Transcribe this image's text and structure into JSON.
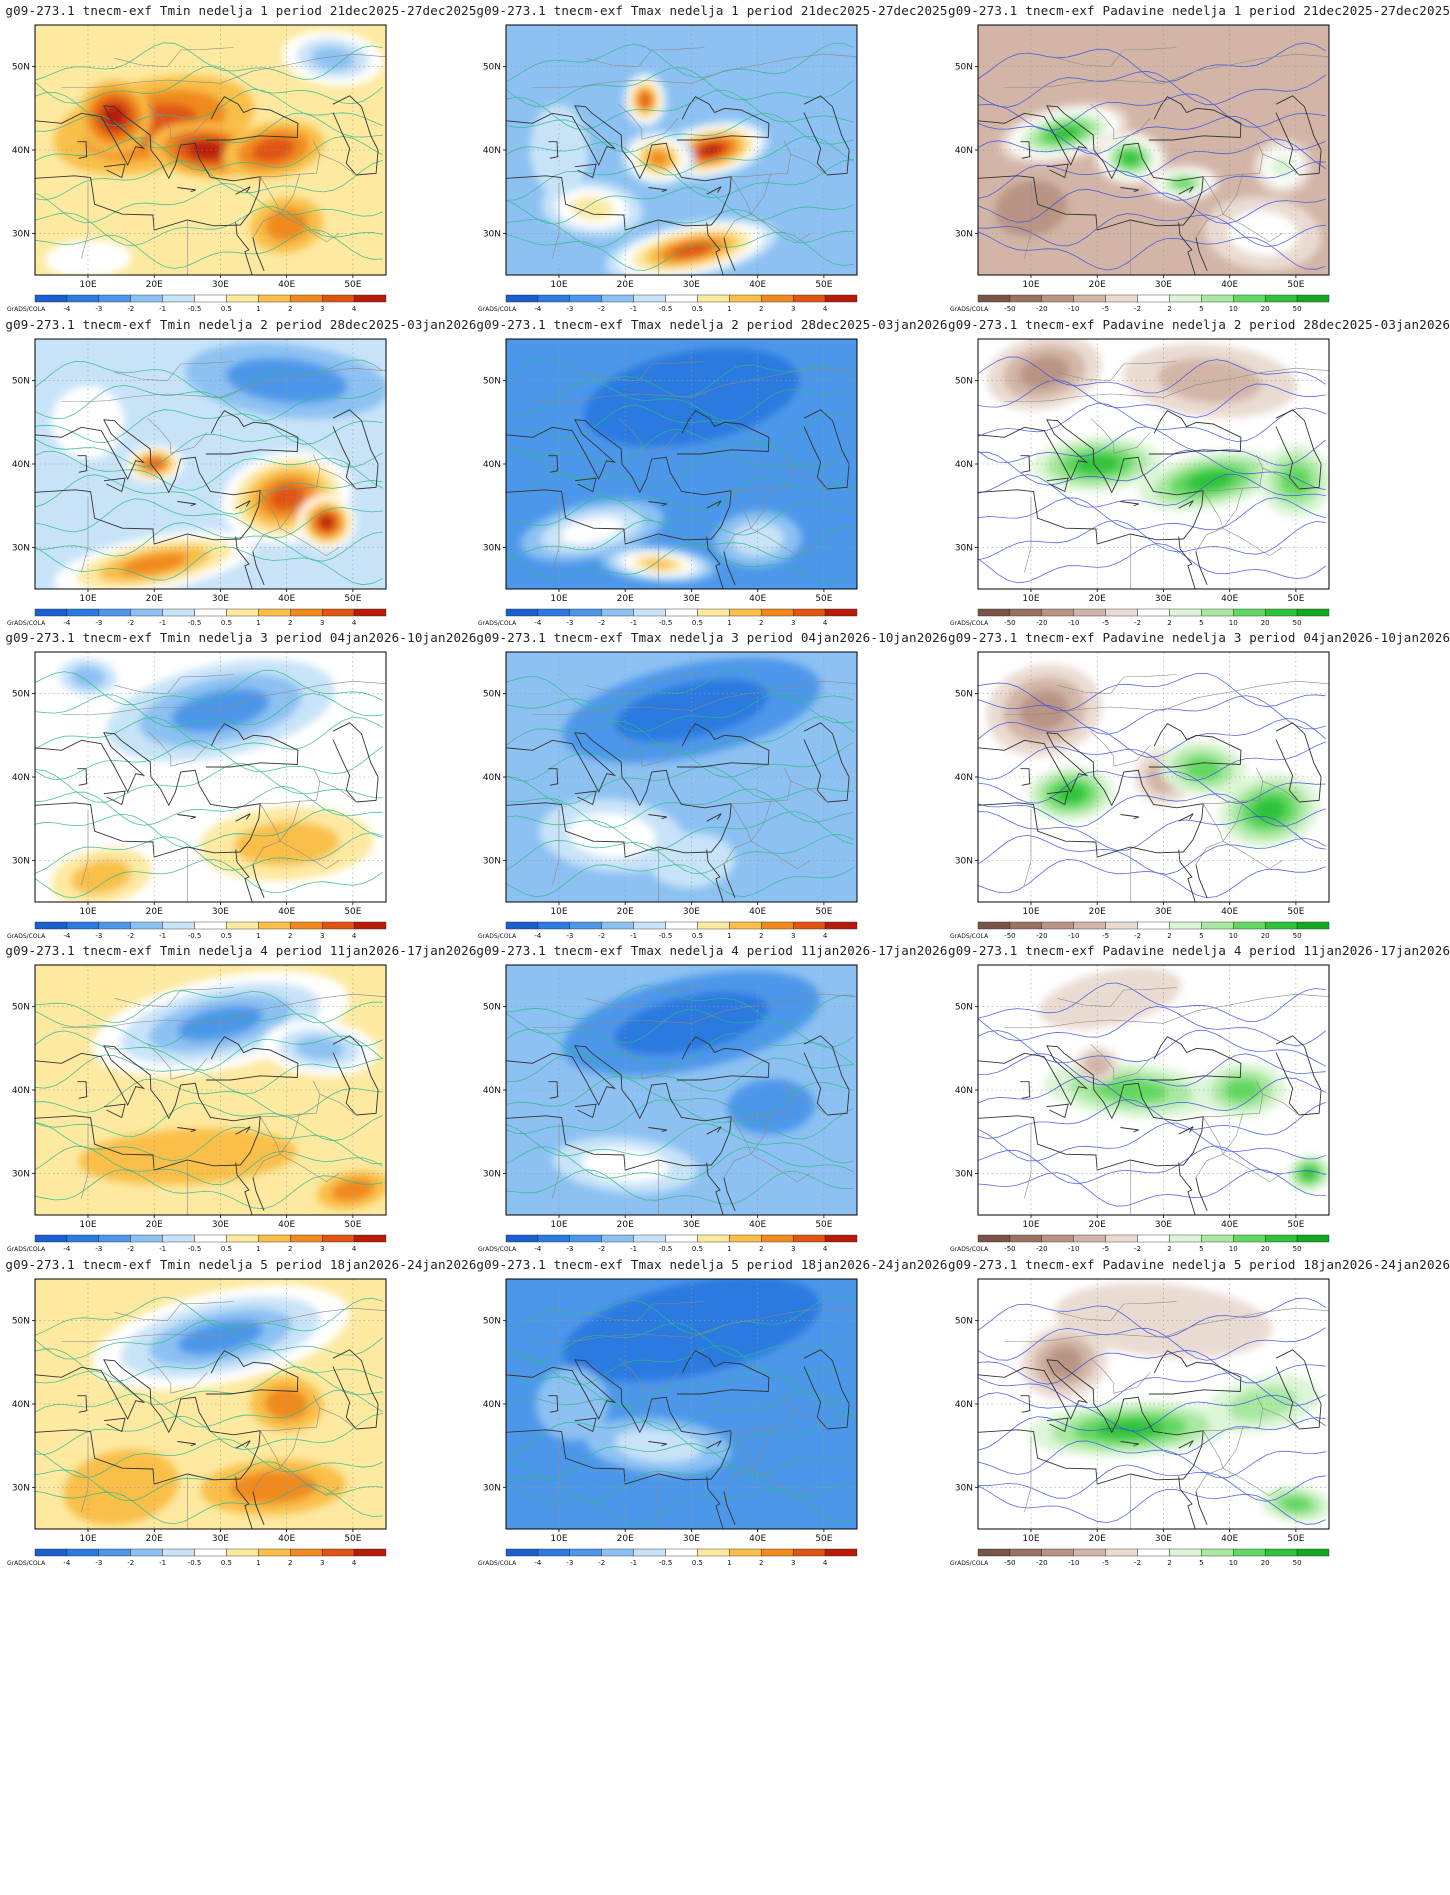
{
  "colorbars": {
    "temperature": {
      "labels": [
        "-4",
        "-3",
        "-2",
        "-1",
        "-0.5",
        "0.5",
        "1",
        "2",
        "3",
        "4"
      ],
      "colors": [
        "#1a5fd0",
        "#2b7ae0",
        "#4d97ea",
        "#8cc1f2",
        "#c8e3f8",
        "#ffffff",
        "#fde9a0",
        "#f9bf4a",
        "#f08a1f",
        "#e05412",
        "#b81b0a"
      ]
    },
    "precipitation": {
      "labels": [
        "-50",
        "-20",
        "-10",
        "-5",
        "-2",
        "2",
        "5",
        "10",
        "20",
        "50"
      ],
      "colors": [
        "#7a5444",
        "#9a7262",
        "#b99484",
        "#d2b5a6",
        "#eadbd2",
        "#ffffff",
        "#dcf5d6",
        "#a8e8a0",
        "#62d862",
        "#2fc23a",
        "#13a820"
      ]
    }
  },
  "grads_tag": "GrADS/COLA",
  "lat_labels": [
    "50N",
    "40N",
    "30N"
  ],
  "lon_labels": [
    "10E",
    "20E",
    "30E",
    "40E",
    "50E"
  ],
  "maps": [
    {
      "title": "g09-273.1 tnecm-exf Tmin nedelja 1 period 21dec2025-27dec2025",
      "variable": "Tmin",
      "week": 1,
      "colorbar": "temperature",
      "background_level": 6,
      "blobs": [
        {
          "lon": 20,
          "lat": 43,
          "rx": 14,
          "ry": 5,
          "level": 9
        },
        {
          "lon": 28,
          "lat": 40,
          "rx": 8,
          "ry": 3,
          "level": 10
        },
        {
          "lon": 14,
          "lat": 44,
          "rx": 5,
          "ry": 4,
          "level": 10
        },
        {
          "lon": 38,
          "lat": 40,
          "rx": 7,
          "ry": 3,
          "level": 9
        },
        {
          "lon": 47,
          "lat": 51,
          "rx": 7,
          "ry": 3,
          "level": 3
        },
        {
          "lon": 10,
          "lat": 27,
          "rx": 6,
          "ry": 2,
          "level": 5
        },
        {
          "lon": 40,
          "lat": 31,
          "rx": 5,
          "ry": 3,
          "level": 8
        }
      ]
    },
    {
      "title": "g09-273.1 tnecm-exf Tmax nedelja 1 period 21dec2025-27dec2025",
      "variable": "Tmax",
      "week": 1,
      "colorbar": "temperature",
      "background_level": 3,
      "blobs": [
        {
          "lon": 33,
          "lat": 40,
          "rx": 8,
          "ry": 3,
          "level": 10
        },
        {
          "lon": 25,
          "lat": 39,
          "rx": 5,
          "ry": 3,
          "level": 8
        },
        {
          "lon": 23,
          "lat": 46,
          "rx": 3,
          "ry": 3,
          "level": 9
        },
        {
          "lon": 30,
          "lat": 28,
          "rx": 12,
          "ry": 3,
          "level": 9
        },
        {
          "lon": 15,
          "lat": 33,
          "rx": 7,
          "ry": 3,
          "level": 6
        },
        {
          "lon": 10,
          "lat": 40,
          "rx": 4,
          "ry": 5,
          "level": 4
        }
      ]
    },
    {
      "title": "g09-273.1 tnecm-exf Padavine nedelja 1 period 21dec2025-27dec2025",
      "variable": "Padavine",
      "week": 1,
      "colorbar": "precipitation",
      "background_level": 3,
      "blobs": [
        {
          "lon": 15,
          "lat": 42,
          "rx": 9,
          "ry": 3,
          "level": 9
        },
        {
          "lon": 25,
          "lat": 39,
          "rx": 5,
          "ry": 3,
          "level": 9
        },
        {
          "lon": 33,
          "lat": 36,
          "rx": 5,
          "ry": 2,
          "level": 8
        },
        {
          "lon": 10,
          "lat": 33,
          "rx": 5,
          "ry": 3,
          "level": 2
        },
        {
          "lon": 45,
          "lat": 30,
          "rx": 8,
          "ry": 4,
          "level": 5
        },
        {
          "lon": 48,
          "lat": 38,
          "rx": 4,
          "ry": 3,
          "level": 6
        }
      ]
    },
    {
      "title": "g09-273.1 tnecm-exf Tmin nedelja 2 period 28dec2025-03jan2026",
      "variable": "Tmin",
      "week": 2,
      "colorbar": "temperature",
      "background_level": 4,
      "blobs": [
        {
          "lon": 40,
          "lat": 36,
          "rx": 9,
          "ry": 5,
          "level": 9
        },
        {
          "lon": 46,
          "lat": 33,
          "rx": 4,
          "ry": 3,
          "level": 10
        },
        {
          "lon": 20,
          "lat": 40,
          "rx": 4,
          "ry": 2,
          "level": 9
        },
        {
          "lon": 20,
          "lat": 28,
          "rx": 14,
          "ry": 3,
          "level": 8
        },
        {
          "lon": 40,
          "lat": 50,
          "rx": 14,
          "ry": 4,
          "level": 2
        },
        {
          "lon": 10,
          "lat": 45,
          "rx": 5,
          "ry": 4,
          "level": 5
        }
      ]
    },
    {
      "title": "g09-273.1 tnecm-exf Tmax nedelja 2 period 28dec2025-03jan2026",
      "variable": "Tmax",
      "week": 2,
      "colorbar": "temperature",
      "background_level": 2,
      "blobs": [
        {
          "lon": 15,
          "lat": 32,
          "rx": 10,
          "ry": 3,
          "level": 5
        },
        {
          "lon": 25,
          "lat": 28,
          "rx": 8,
          "ry": 2,
          "level": 7
        },
        {
          "lon": 40,
          "lat": 31,
          "rx": 6,
          "ry": 3,
          "level": 4
        },
        {
          "lon": 30,
          "lat": 48,
          "rx": 15,
          "ry": 5,
          "level": 1
        }
      ]
    },
    {
      "title": "g09-273.1 tnecm-exf Padavine nedelja 2 period 28dec2025-03jan2026",
      "variable": "Padavine",
      "week": 2,
      "colorbar": "precipitation",
      "background_level": 5,
      "blobs": [
        {
          "lon": 12,
          "lat": 51,
          "rx": 8,
          "ry": 4,
          "level": 2
        },
        {
          "lon": 37,
          "lat": 50,
          "rx": 12,
          "ry": 4,
          "level": 3
        },
        {
          "lon": 20,
          "lat": 40,
          "rx": 9,
          "ry": 3,
          "level": 9
        },
        {
          "lon": 37,
          "lat": 38,
          "rx": 10,
          "ry": 3,
          "level": 9
        },
        {
          "lon": 50,
          "lat": 38,
          "rx": 5,
          "ry": 4,
          "level": 8
        },
        {
          "lon": 25,
          "lat": 30,
          "rx": 10,
          "ry": 3,
          "level": 5
        }
      ]
    },
    {
      "title": "g09-273.1 tnecm-exf Tmin nedelja 3 period 04jan2026-10jan2026",
      "variable": "Tmin",
      "week": 3,
      "colorbar": "temperature",
      "background_level": 5,
      "blobs": [
        {
          "lon": 30,
          "lat": 48,
          "rx": 16,
          "ry": 5,
          "level": 2
        },
        {
          "lon": 10,
          "lat": 52,
          "rx": 4,
          "ry": 2,
          "level": 3
        },
        {
          "lon": 40,
          "lat": 32,
          "rx": 12,
          "ry": 4,
          "level": 7
        },
        {
          "lon": 12,
          "lat": 28,
          "rx": 7,
          "ry": 3,
          "level": 7
        }
      ]
    },
    {
      "title": "g09-273.1 tnecm-exf Tmax nedelja 3 period 04jan2026-10jan2026",
      "variable": "Tmax",
      "week": 3,
      "colorbar": "temperature",
      "background_level": 3,
      "blobs": [
        {
          "lon": 30,
          "lat": 48,
          "rx": 18,
          "ry": 5,
          "level": 1
        },
        {
          "lon": 18,
          "lat": 33,
          "rx": 10,
          "ry": 4,
          "level": 5
        },
        {
          "lon": 30,
          "lat": 30,
          "rx": 6,
          "ry": 3,
          "level": 4
        }
      ]
    },
    {
      "title": "g09-273.1 tnecm-exf Padavine nedelja 3 period 04jan2026-10jan2026",
      "variable": "Padavine",
      "week": 3,
      "colorbar": "precipitation",
      "background_level": 5,
      "blobs": [
        {
          "lon": 12,
          "lat": 48,
          "rx": 8,
          "ry": 5,
          "level": 2
        },
        {
          "lon": 30,
          "lat": 40,
          "rx": 4,
          "ry": 3,
          "level": 3
        },
        {
          "lon": 16,
          "lat": 38,
          "rx": 6,
          "ry": 3,
          "level": 9
        },
        {
          "lon": 46,
          "lat": 36,
          "rx": 7,
          "ry": 4,
          "level": 9
        },
        {
          "lon": 36,
          "lat": 41,
          "rx": 6,
          "ry": 3,
          "level": 8
        }
      ]
    },
    {
      "title": "g09-273.1 tnecm-exf Tmin nedelja 4 period 11jan2026-17jan2026",
      "variable": "Tmin",
      "week": 4,
      "colorbar": "temperature",
      "background_level": 6,
      "blobs": [
        {
          "lon": 30,
          "lat": 48,
          "rx": 18,
          "ry": 5,
          "level": 2
        },
        {
          "lon": 45,
          "lat": 45,
          "rx": 8,
          "ry": 3,
          "level": 3
        },
        {
          "lon": 25,
          "lat": 32,
          "rx": 15,
          "ry": 3,
          "level": 7
        },
        {
          "lon": 50,
          "lat": 28,
          "rx": 5,
          "ry": 2,
          "level": 8
        }
      ]
    },
    {
      "title": "g09-273.1 tnecm-exf Tmax nedelja 4 period 11jan2026-17jan2026",
      "variable": "Tmax",
      "week": 4,
      "colorbar": "temperature",
      "background_level": 3,
      "blobs": [
        {
          "lon": 30,
          "lat": 48,
          "rx": 18,
          "ry": 5,
          "level": 1
        },
        {
          "lon": 20,
          "lat": 31,
          "rx": 10,
          "ry": 3,
          "level": 5
        },
        {
          "lon": 42,
          "lat": 38,
          "rx": 6,
          "ry": 3,
          "level": 2
        }
      ]
    },
    {
      "title": "g09-273.1 tnecm-exf Padavine nedelja 4 period 11jan2026-17jan2026",
      "variable": "Padavine",
      "week": 4,
      "colorbar": "precipitation",
      "background_level": 5,
      "blobs": [
        {
          "lon": 22,
          "lat": 51,
          "rx": 10,
          "ry": 3,
          "level": 4
        },
        {
          "lon": 25,
          "lat": 40,
          "rx": 12,
          "ry": 3,
          "level": 8
        },
        {
          "lon": 42,
          "lat": 40,
          "rx": 6,
          "ry": 3,
          "level": 8
        },
        {
          "lon": 52,
          "lat": 30,
          "rx": 3,
          "ry": 2,
          "level": 9
        },
        {
          "lon": 20,
          "lat": 43,
          "rx": 3,
          "ry": 2,
          "level": 3
        }
      ]
    },
    {
      "title": "g09-273.1 tnecm-exf Tmin nedelja 5 period 18jan2026-24jan2026",
      "variable": "Tmin",
      "week": 5,
      "colorbar": "temperature",
      "background_level": 6,
      "blobs": [
        {
          "lon": 30,
          "lat": 48,
          "rx": 18,
          "ry": 5,
          "level": 2
        },
        {
          "lon": 40,
          "lat": 40,
          "rx": 5,
          "ry": 3,
          "level": 8
        },
        {
          "lon": 38,
          "lat": 30,
          "rx": 10,
          "ry": 3,
          "level": 8
        },
        {
          "lon": 15,
          "lat": 30,
          "rx": 8,
          "ry": 4,
          "level": 7
        }
      ]
    },
    {
      "title": "g09-273.1 tnecm-exf Tmax nedelja 5 period 18jan2026-24jan2026",
      "variable": "Tmax",
      "week": 5,
      "colorbar": "temperature",
      "background_level": 2,
      "blobs": [
        {
          "lon": 30,
          "lat": 49,
          "rx": 18,
          "ry": 5,
          "level": 1
        },
        {
          "lon": 25,
          "lat": 35,
          "rx": 10,
          "ry": 3,
          "level": 4
        },
        {
          "lon": 12,
          "lat": 40,
          "rx": 5,
          "ry": 4,
          "level": 3
        }
      ]
    },
    {
      "title": "g09-273.1 tnecm-exf Padavine nedelja 5 period 18jan2026-24jan2026",
      "variable": "Padavine",
      "week": 5,
      "colorbar": "precipitation",
      "background_level": 5,
      "blobs": [
        {
          "lon": 15,
          "lat": 45,
          "rx": 6,
          "ry": 4,
          "level": 2
        },
        {
          "lon": 30,
          "lat": 50,
          "rx": 15,
          "ry": 4,
          "level": 4
        },
        {
          "lon": 25,
          "lat": 37,
          "rx": 14,
          "ry": 3,
          "level": 9
        },
        {
          "lon": 45,
          "lat": 40,
          "rx": 8,
          "ry": 3,
          "level": 7
        },
        {
          "lon": 50,
          "lat": 28,
          "rx": 5,
          "ry": 2,
          "level": 8
        }
      ]
    }
  ]
}
